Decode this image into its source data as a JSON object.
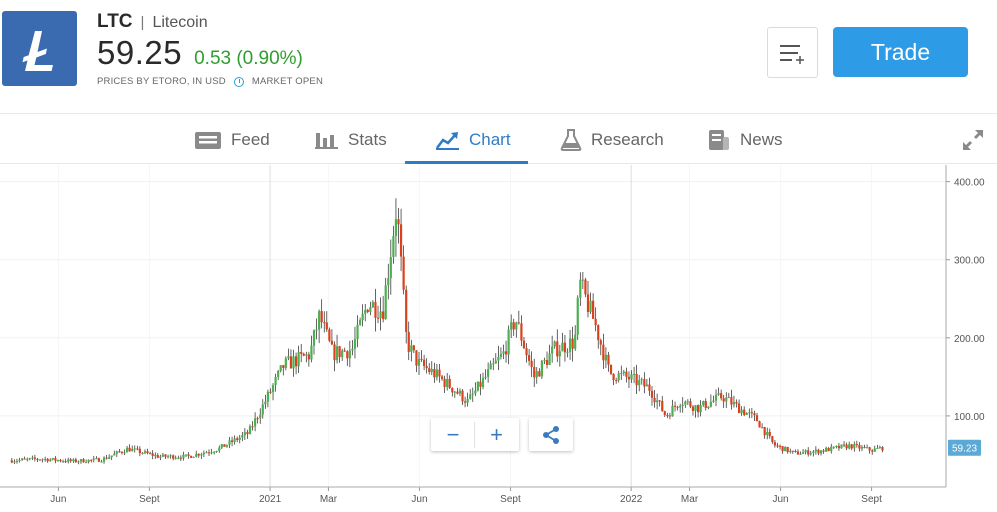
{
  "header": {
    "ticker": "LTC",
    "separator": "|",
    "name": "Litecoin",
    "price": "59.25",
    "change": "0.53 (0.90%)",
    "source": "PRICES BY ETORO, IN USD",
    "market_status": "MARKET OPEN",
    "trade_label": "Trade",
    "logo_icon": "litecoin-logo",
    "brand_color": "#3a6bb0",
    "accent_color": "#2e9be6",
    "up_color": "#2e9e2e"
  },
  "tabs": [
    {
      "label": "Feed",
      "icon": "feed-icon"
    },
    {
      "label": "Stats",
      "icon": "bar-chart-icon"
    },
    {
      "label": "Chart",
      "icon": "trend-chart-icon",
      "active": true
    },
    {
      "label": "Research",
      "icon": "flask-icon"
    },
    {
      "label": "News",
      "icon": "news-icon"
    }
  ],
  "chart_data": {
    "type": "line",
    "style": "candlestick",
    "x_labels": [
      "Jun",
      "Sept",
      "2021",
      "Mar",
      "Jun",
      "Sept",
      "2022",
      "Mar",
      "Jun",
      "Sept"
    ],
    "y_ticks": [
      "400.00",
      "300.00",
      "200.00",
      "100.00"
    ],
    "ylim": [
      0,
      400
    ],
    "current_value_label": "59.23",
    "grid": true,
    "up_color": "#4caf50",
    "down_color": "#d9421c",
    "price_points": [
      [
        "2020-04-15",
        43
      ],
      [
        "2020-05-15",
        45
      ],
      [
        "2020-06-15",
        42
      ],
      [
        "2020-07-15",
        44
      ],
      [
        "2020-08-10",
        58
      ],
      [
        "2020-09-10",
        48
      ],
      [
        "2020-10-10",
        48
      ],
      [
        "2020-11-10",
        58
      ],
      [
        "2020-12-10",
        78
      ],
      [
        "2020-12-31",
        128
      ],
      [
        "2021-01-15",
        165
      ],
      [
        "2021-02-10",
        178
      ],
      [
        "2021-02-20",
        228
      ],
      [
        "2021-03-05",
        180
      ],
      [
        "2021-03-25",
        185
      ],
      [
        "2021-04-10",
        245
      ],
      [
        "2021-04-25",
        235
      ],
      [
        "2021-05-09",
        370
      ],
      [
        "2021-05-19",
        195
      ],
      [
        "2021-05-30",
        168
      ],
      [
        "2021-06-15",
        155
      ],
      [
        "2021-07-05",
        135
      ],
      [
        "2021-07-20",
        118
      ],
      [
        "2021-08-10",
        155
      ],
      [
        "2021-08-25",
        180
      ],
      [
        "2021-09-06",
        225
      ],
      [
        "2021-09-25",
        150
      ],
      [
        "2021-10-15",
        185
      ],
      [
        "2021-11-05",
        195
      ],
      [
        "2021-11-10",
        270
      ],
      [
        "2021-11-25",
        220
      ],
      [
        "2021-12-10",
        155
      ],
      [
        "2021-12-31",
        148
      ],
      [
        "2022-01-20",
        135
      ],
      [
        "2022-02-05",
        100
      ],
      [
        "2022-02-20",
        120
      ],
      [
        "2022-03-10",
        110
      ],
      [
        "2022-04-03",
        125
      ],
      [
        "2022-04-20",
        110
      ],
      [
        "2022-05-08",
        95
      ],
      [
        "2022-05-25",
        63
      ],
      [
        "2022-06-15",
        52
      ],
      [
        "2022-07-10",
        55
      ],
      [
        "2022-08-10",
        62
      ],
      [
        "2022-09-01",
        56
      ],
      [
        "2022-09-12",
        59.23
      ]
    ],
    "time_axis": [
      "2020-04-01",
      "2022-10-25"
    ]
  },
  "zoom": {
    "out_label": "−",
    "in_label": "+"
  }
}
